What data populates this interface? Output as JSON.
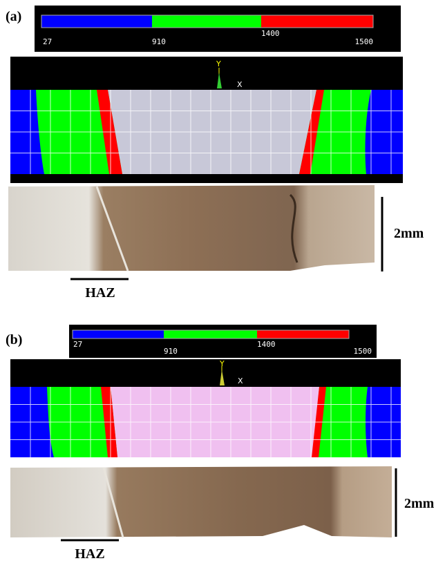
{
  "panels": [
    {
      "label": "(a)",
      "colorbar": [
        "27",
        "910",
        "1400",
        "1500"
      ],
      "axis_y": "Y",
      "axis_x": "X",
      "scale_label": "2mm",
      "haz_label": "HAZ"
    },
    {
      "label": "(b)",
      "colorbar": [
        "27",
        "910",
        "1400",
        "1500"
      ],
      "axis_y": "Y",
      "axis_x": "X",
      "scale_label": "2mm",
      "haz_label": "HAZ"
    }
  ]
}
